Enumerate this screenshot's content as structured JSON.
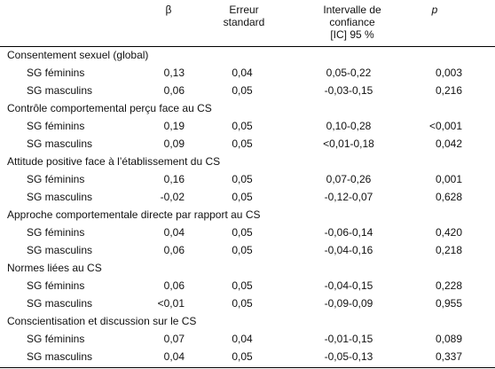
{
  "table": {
    "header": [
      [
        "β"
      ],
      [
        "Erreur",
        "standard"
      ],
      [
        "Intervalle de",
        "confiance",
        "[IC] 95 %"
      ],
      [
        "p"
      ]
    ],
    "sections": [
      {
        "title": "Consentement sexuel (global)",
        "rows": [
          [
            "SG féminins",
            "0,13",
            "0,04",
            "0,05-0,22",
            "0,003"
          ],
          [
            "SG masculins",
            "0,06",
            "0,05",
            "-0,03-0,15",
            "0,216"
          ]
        ]
      },
      {
        "title": "Contrôle comportemental perçu face au CS",
        "rows": [
          [
            "SG féminins",
            "0,19",
            "0,05",
            "0,10-0,28",
            "<0,001"
          ],
          [
            "SG masculins",
            "0,09",
            "0,05",
            "<0,01-0,18",
            "0,042"
          ]
        ]
      },
      {
        "title": "Attitude positive face à l’établissement du CS",
        "rows": [
          [
            "SG féminins",
            "0,16",
            "0,05",
            "0,07-0,26",
            "0,001"
          ],
          [
            "SG masculins",
            "-0,02",
            "0,05",
            "-0,12-0,07",
            "0,628"
          ]
        ]
      },
      {
        "title": "Approche comportementale directe par rapport au CS",
        "rows": [
          [
            "SG féminins",
            "0,04",
            "0,05",
            "-0,06-0,14",
            "0,420"
          ],
          [
            "SG masculins",
            "0,06",
            "0,05",
            "-0,04-0,16",
            "0,218"
          ]
        ]
      },
      {
        "title": "Normes liées au CS",
        "rows": [
          [
            "SG féminins",
            "0,06",
            "0,05",
            "-0,04-0,15",
            "0,228"
          ],
          [
            "SG masculins",
            "<0,01",
            "0,05",
            "-0,09-0,09",
            "0,955"
          ]
        ]
      },
      {
        "title": "Conscientisation et discussion sur le CS",
        "rows": [
          [
            "SG féminins",
            "0,07",
            "0,04",
            "-0,01-0,15",
            "0,089"
          ],
          [
            "SG masculins",
            "0,04",
            "0,05",
            "-0,05-0,13",
            "0,337"
          ]
        ]
      }
    ]
  }
}
